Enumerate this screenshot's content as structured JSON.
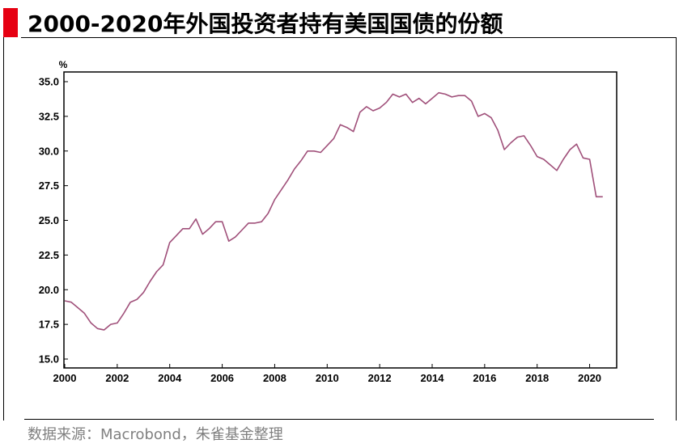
{
  "title": "2000-2020年外国投资者持有美国国债的份额",
  "source": "数据来源：Macrobond，朱雀基金整理",
  "colors": {
    "accent": "#e60012",
    "line": "#a0507a"
  },
  "chart_data": {
    "type": "line",
    "ylabel": "%",
    "xlim": [
      2000,
      2021
    ],
    "ylim": [
      15.0,
      35.0
    ],
    "yticks": [
      "15.0",
      "17.5",
      "20.0",
      "22.5",
      "25.0",
      "27.5",
      "30.0",
      "32.5",
      "35.0"
    ],
    "xticks": [
      "2000",
      "2002",
      "2004",
      "2006",
      "2008",
      "2010",
      "2012",
      "2014",
      "2016",
      "2018",
      "2020"
    ],
    "grid": false,
    "series": [
      {
        "x": [
          2000.0,
          2000.25,
          2000.5,
          2000.75,
          2001.0,
          2001.25,
          2001.5,
          2001.75,
          2002.0,
          2002.25,
          2002.5,
          2002.75,
          2003.0,
          2003.25,
          2003.5,
          2003.75,
          2004.0,
          2004.25,
          2004.5,
          2004.75,
          2005.0,
          2005.25,
          2005.5,
          2005.75,
          2006.0,
          2006.25,
          2006.5,
          2006.75,
          2007.0,
          2007.25,
          2007.5,
          2007.75,
          2008.0,
          2008.25,
          2008.5,
          2008.75,
          2009.0,
          2009.25,
          2009.5,
          2009.75,
          2010.0,
          2010.25,
          2010.5,
          2010.75,
          2011.0,
          2011.25,
          2011.5,
          2011.75,
          2012.0,
          2012.25,
          2012.5,
          2012.75,
          2013.0,
          2013.25,
          2013.5,
          2013.75,
          2014.0,
          2014.25,
          2014.5,
          2014.75,
          2015.0,
          2015.25,
          2015.5,
          2015.75,
          2016.0,
          2016.25,
          2016.5,
          2016.75,
          2017.0,
          2017.25,
          2017.5,
          2017.75,
          2018.0,
          2018.25,
          2018.5,
          2018.75,
          2019.0,
          2019.25,
          2019.5,
          2019.75,
          2020.0,
          2020.25,
          2020.5
        ],
        "values": [
          19.2,
          19.1,
          18.7,
          18.3,
          17.6,
          17.2,
          17.1,
          17.5,
          17.6,
          18.3,
          19.1,
          19.3,
          19.8,
          20.6,
          21.3,
          21.8,
          23.4,
          23.9,
          24.4,
          24.4,
          25.1,
          24.0,
          24.4,
          24.9,
          24.9,
          23.5,
          23.8,
          24.3,
          24.8,
          24.8,
          24.9,
          25.5,
          26.5,
          27.2,
          27.9,
          28.7,
          29.3,
          30.0,
          30.0,
          29.9,
          30.4,
          30.9,
          31.9,
          31.7,
          31.4,
          32.8,
          33.2,
          32.9,
          33.1,
          33.5,
          34.1,
          33.9,
          34.1,
          33.5,
          33.8,
          33.4,
          33.8,
          34.2,
          34.1,
          33.9,
          34.0,
          34.0,
          33.6,
          32.5,
          32.7,
          32.4,
          31.5,
          30.1,
          30.6,
          31.0,
          31.1,
          30.4,
          29.6,
          29.4,
          29.0,
          28.6,
          29.4,
          30.1,
          30.5,
          29.5,
          29.4,
          26.7,
          26.7
        ]
      }
    ]
  }
}
